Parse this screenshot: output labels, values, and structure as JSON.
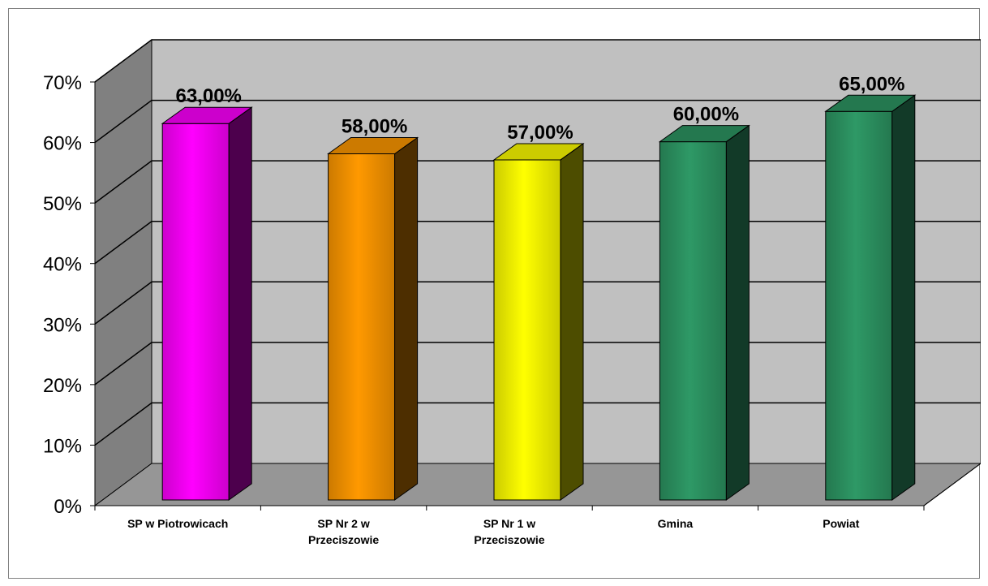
{
  "chart_data": {
    "type": "bar",
    "title": "",
    "xlabel": "",
    "ylabel": "",
    "ylim": [
      0,
      70
    ],
    "y_ticks": [
      "0%",
      "10%",
      "20%",
      "30%",
      "40%",
      "50%",
      "60%",
      "70%"
    ],
    "y_tick_values": [
      0,
      10,
      20,
      30,
      40,
      50,
      60,
      70
    ],
    "grid": true,
    "legend": "none",
    "categories": [
      [
        "SP w  Piotrowicach"
      ],
      [
        "SP Nr 2 w",
        "Przeciszowie"
      ],
      [
        "SP Nr 1 w",
        "Przeciszowie"
      ],
      [
        "Gmina"
      ],
      [
        "Powiat"
      ]
    ],
    "values": [
      63,
      58,
      57,
      60,
      65
    ],
    "data_labels": [
      "63,00%",
      "58,00%",
      "57,00%",
      "60,00%",
      "65,00%"
    ],
    "bar_colors": [
      {
        "front": "#ff00ff",
        "side": "#4d004d",
        "top": "#cc00cc"
      },
      {
        "front": "#ff9900",
        "side": "#4d2e00",
        "top": "#cc7a00"
      },
      {
        "front": "#ffff00",
        "side": "#4d4d00",
        "top": "#cccc00"
      },
      {
        "front": "#2e9966",
        "side": "#123a28",
        "top": "#24784f"
      },
      {
        "front": "#2e9966",
        "side": "#123a28",
        "top": "#24784f"
      }
    ],
    "wall_color": "#c0c0c0",
    "floor_color": "#969696",
    "side_wall_color": "#808080"
  }
}
